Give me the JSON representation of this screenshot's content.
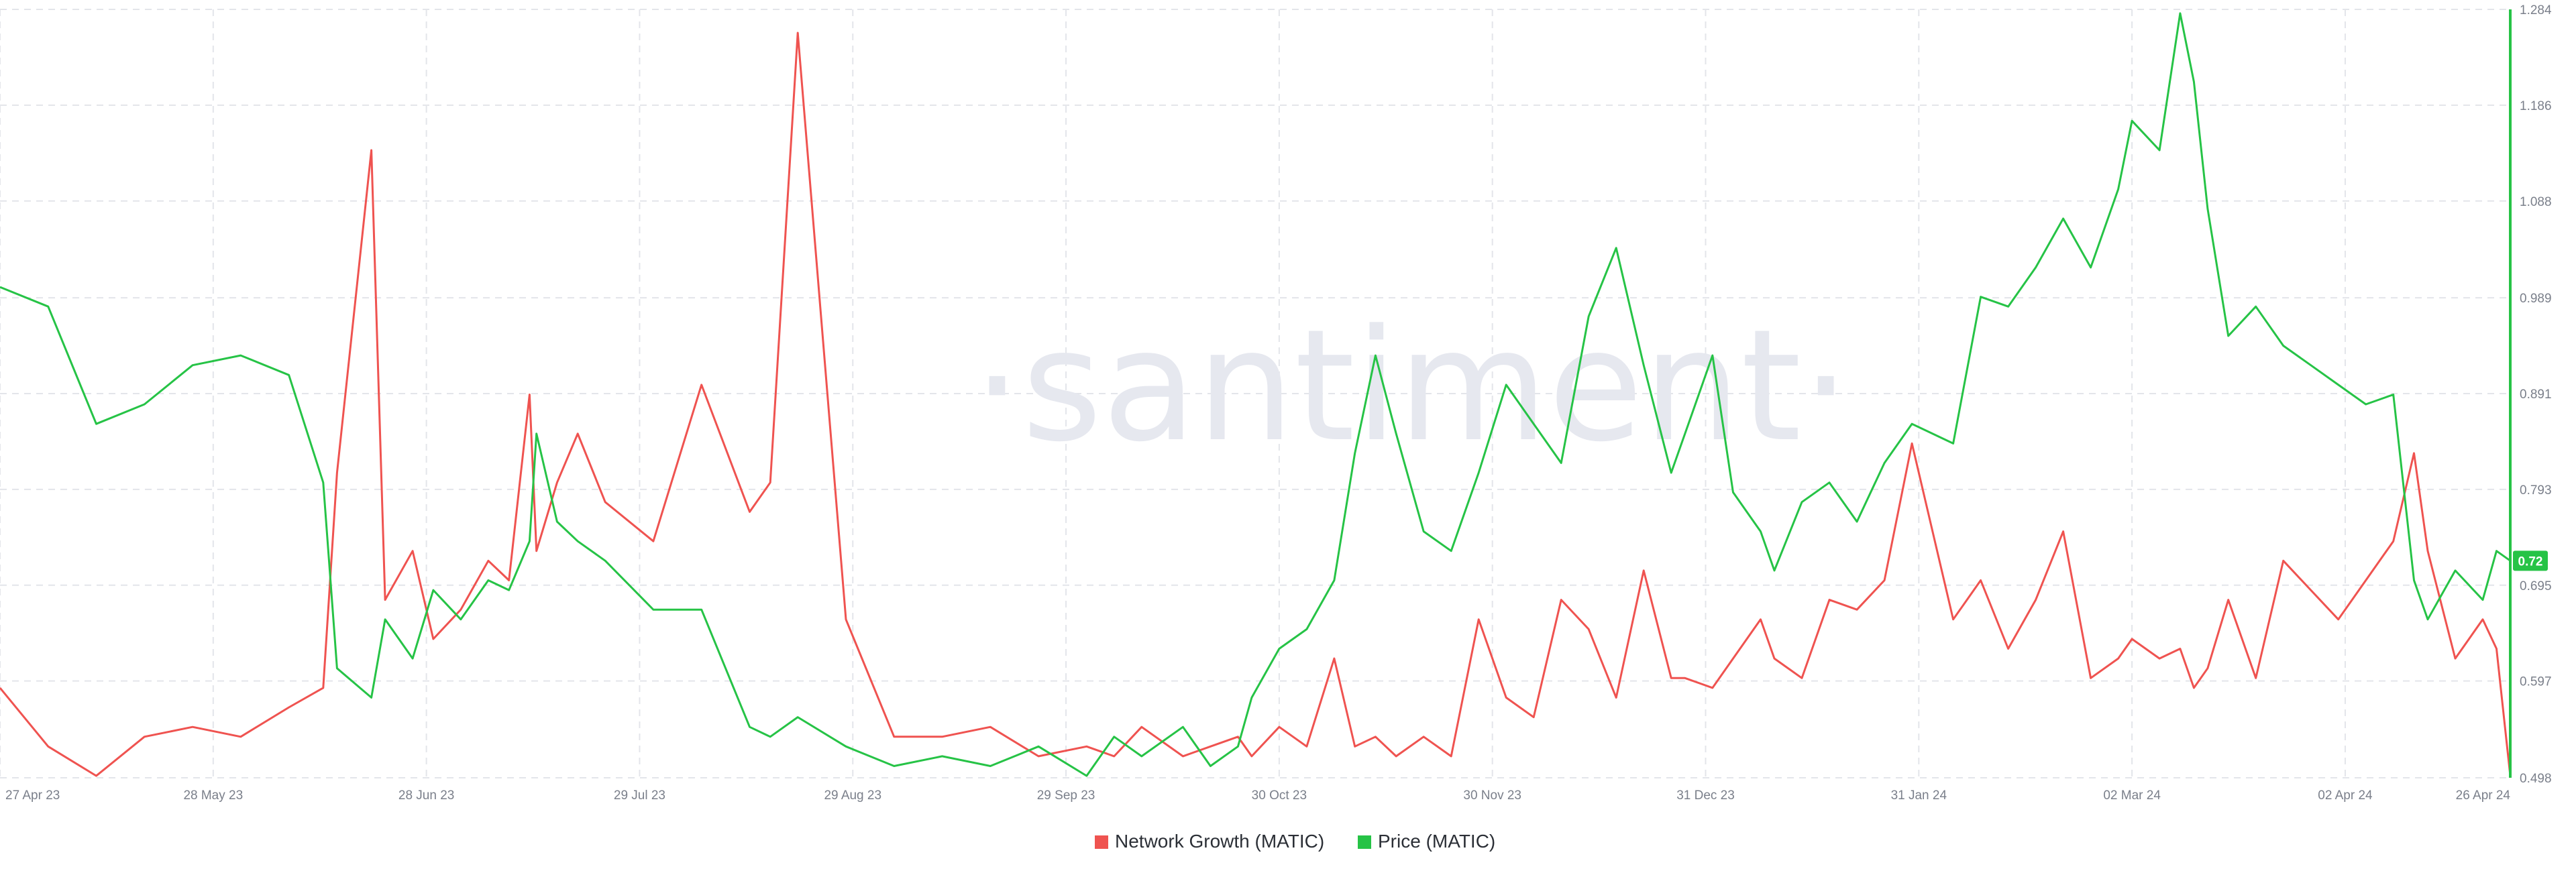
{
  "watermark": "·santiment·",
  "chart_data": {
    "type": "line",
    "title": "",
    "x": [
      "27 Apr 23",
      "04 May 23",
      "11 May 23",
      "18 May 23",
      "25 May 23",
      "01 Jun 23",
      "08 Jun 23",
      "13 Jun 23",
      "15 Jun 23",
      "20 Jun 23",
      "22 Jun 23",
      "26 Jun 23",
      "29 Jun 23",
      "03 Jul 23",
      "07 Jul 23",
      "10 Jul 23",
      "13 Jul 23",
      "14 Jul 23",
      "17 Jul 23",
      "20 Jul 23",
      "24 Jul 23",
      "31 Jul 23",
      "07 Aug 23",
      "14 Aug 23",
      "17 Aug 23",
      "21 Aug 23",
      "28 Aug 23",
      "04 Sep 23",
      "11 Sep 23",
      "18 Sep 23",
      "25 Sep 23",
      "02 Oct 23",
      "06 Oct 23",
      "10 Oct 23",
      "16 Oct 23",
      "20 Oct 23",
      "24 Oct 23",
      "26 Oct 23",
      "30 Oct 23",
      "03 Nov 23",
      "07 Nov 23",
      "10 Nov 23",
      "13 Nov 23",
      "16 Nov 23",
      "20 Nov 23",
      "24 Nov 23",
      "28 Nov 23",
      "02 Dec 23",
      "06 Dec 23",
      "10 Dec 23",
      "14 Dec 23",
      "18 Dec 23",
      "22 Dec 23",
      "26 Dec 23",
      "28 Dec 23",
      "01 Jan 24",
      "04 Jan 24",
      "08 Jan 24",
      "10 Jan 24",
      "14 Jan 24",
      "18 Jan 24",
      "22 Jan 24",
      "26 Jan 24",
      "30 Jan 24",
      "05 Feb 24",
      "09 Feb 24",
      "13 Feb 24",
      "17 Feb 24",
      "21 Feb 24",
      "25 Feb 24",
      "29 Feb 24",
      "02 Mar 24",
      "06 Mar 24",
      "09 Mar 24",
      "11 Mar 24",
      "13 Mar 24",
      "16 Mar 24",
      "20 Mar 24",
      "24 Mar 24",
      "28 Mar 24",
      "01 Apr 24",
      "05 Apr 24",
      "09 Apr 24",
      "12 Apr 24",
      "14 Apr 24",
      "18 Apr 24",
      "22 Apr 24",
      "24 Apr 24",
      "26 Apr 24"
    ],
    "x_ticks": [
      "27 Apr 23",
      "28 May 23",
      "28 Jun 23",
      "29 Jul 23",
      "29 Aug 23",
      "29 Sep 23",
      "30 Oct 23",
      "30 Nov 23",
      "31 Dec 23",
      "31 Jan 24",
      "02 Mar 24",
      "02 Apr 24",
      "26 Apr 24"
    ],
    "y_ticks": [
      0.498,
      0.597,
      0.695,
      0.793,
      0.891,
      0.989,
      1.088,
      1.186,
      1.284
    ],
    "ylim": [
      0.498,
      1.284
    ],
    "grid": true,
    "legend_position": "bottom-center",
    "current_price_label": "0.72",
    "series": [
      {
        "name": "Network Growth (MATIC)",
        "color": "#ef5350",
        "values": [
          0.59,
          0.53,
          0.5,
          0.54,
          0.55,
          0.54,
          0.57,
          0.59,
          0.81,
          1.14,
          0.68,
          0.73,
          0.64,
          0.67,
          0.72,
          0.7,
          0.89,
          0.73,
          0.8,
          0.85,
          0.78,
          0.74,
          0.9,
          0.77,
          0.8,
          1.26,
          0.66,
          0.54,
          0.54,
          0.55,
          0.52,
          0.53,
          0.52,
          0.55,
          0.52,
          0.53,
          0.54,
          0.52,
          0.55,
          0.53,
          0.62,
          0.53,
          0.54,
          0.52,
          0.54,
          0.52,
          0.66,
          0.58,
          0.56,
          0.68,
          0.65,
          0.58,
          0.71,
          0.6,
          0.6,
          0.59,
          0.62,
          0.66,
          0.62,
          0.6,
          0.68,
          0.67,
          0.7,
          0.84,
          0.66,
          0.7,
          0.63,
          0.68,
          0.75,
          0.6,
          0.62,
          0.64,
          0.62,
          0.63,
          0.59,
          0.61,
          0.68,
          0.6,
          0.72,
          0.69,
          0.66,
          0.7,
          0.74,
          0.83,
          0.73,
          0.62,
          0.66,
          0.63,
          0.5
        ]
      },
      {
        "name": "Price (MATIC)",
        "color": "#26c346",
        "values": [
          1.0,
          0.98,
          0.86,
          0.88,
          0.92,
          0.93,
          0.91,
          0.8,
          0.61,
          0.58,
          0.66,
          0.62,
          0.69,
          0.66,
          0.7,
          0.69,
          0.74,
          0.85,
          0.76,
          0.74,
          0.72,
          0.67,
          0.67,
          0.55,
          0.54,
          0.56,
          0.53,
          0.51,
          0.52,
          0.51,
          0.53,
          0.5,
          0.54,
          0.52,
          0.55,
          0.51,
          0.53,
          0.58,
          0.63,
          0.65,
          0.7,
          0.83,
          0.93,
          0.85,
          0.75,
          0.73,
          0.81,
          0.9,
          0.86,
          0.82,
          0.97,
          1.04,
          0.92,
          0.81,
          0.85,
          0.93,
          0.79,
          0.75,
          0.71,
          0.78,
          0.8,
          0.76,
          0.82,
          0.86,
          0.84,
          0.99,
          0.98,
          1.02,
          1.07,
          1.02,
          1.1,
          1.17,
          1.14,
          1.28,
          1.21,
          1.08,
          0.95,
          0.98,
          0.94,
          0.92,
          0.9,
          0.88,
          0.89,
          0.7,
          0.66,
          0.71,
          0.68,
          0.73,
          0.72
        ]
      }
    ]
  }
}
